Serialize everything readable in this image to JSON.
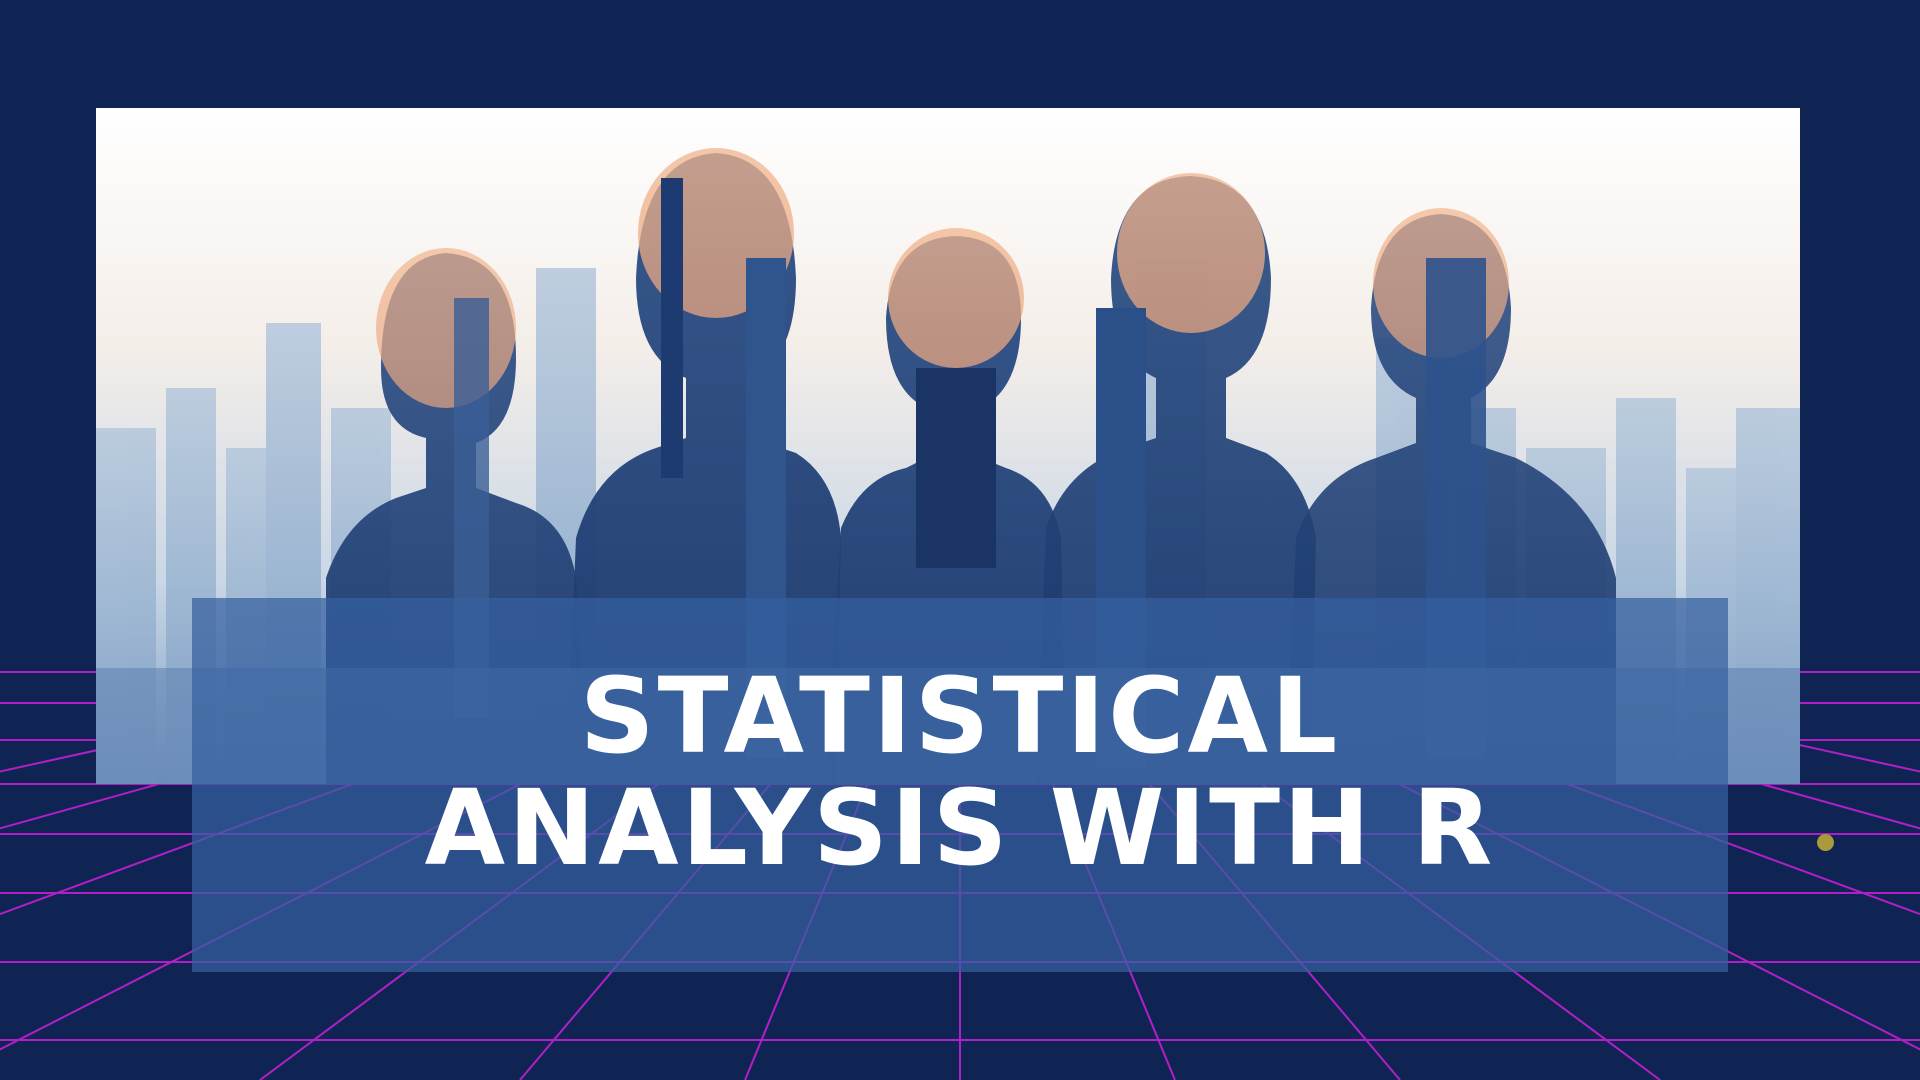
{
  "banner": {
    "title_line_1": "STATISTICAL",
    "title_line_2": "ANALYSIS WITH R"
  },
  "colors": {
    "background": "#0f2453",
    "grid_line": "#c41fd6",
    "title_band": "#3460a0",
    "title_text": "#ffffff",
    "accent_dot": "#a99a3a"
  },
  "image": {
    "subject": "double-exposure-silhouettes-of-five-workers-over-city-skyline"
  }
}
